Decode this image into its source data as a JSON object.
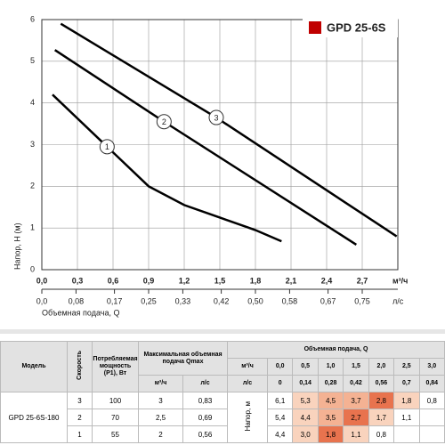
{
  "chart_data": {
    "type": "line",
    "legend_label": "GPD 25-6S",
    "legend_color": "#c00000",
    "xlabel": "Объемная подача, Q",
    "ylabel": "Напор, Н (м)",
    "x_unit": "м³/ч",
    "x2_unit": "л/с",
    "xlim": [
      0,
      3
    ],
    "ylim": [
      0,
      6
    ],
    "x2lim": [
      0,
      0.8333
    ],
    "xticks": [
      {
        "value": 0,
        "label": "0,0"
      },
      {
        "value": 0.3,
        "label": "0,3"
      },
      {
        "value": 0.6,
        "label": "0,6"
      },
      {
        "value": 0.9,
        "label": "0,9"
      },
      {
        "value": 1.2,
        "label": "1,2"
      },
      {
        "value": 1.5,
        "label": "1,5"
      },
      {
        "value": 1.8,
        "label": "1,8"
      },
      {
        "value": 2.1,
        "label": "2,1"
      },
      {
        "value": 2.4,
        "label": "2,4"
      },
      {
        "value": 2.7,
        "label": "2,7"
      }
    ],
    "x2ticks": [
      {
        "value": 0,
        "label": "0,0"
      },
      {
        "value": 0.08,
        "label": "0,08"
      },
      {
        "value": 0.17,
        "label": "0,17"
      },
      {
        "value": 0.25,
        "label": "0,25"
      },
      {
        "value": 0.33,
        "label": "0,33"
      },
      {
        "value": 0.42,
        "label": "0,42"
      },
      {
        "value": 0.5,
        "label": "0,50"
      },
      {
        "value": 0.58,
        "label": "0,58"
      },
      {
        "value": 0.67,
        "label": "0,67"
      },
      {
        "value": 0.75,
        "label": "0,75"
      }
    ],
    "yticks": [
      0,
      1,
      2,
      3,
      4,
      5,
      6
    ],
    "grid": true,
    "series": [
      {
        "name": "1",
        "color": "#000000",
        "x": [
          0.09,
          0.55,
          0.9,
          1.2,
          1.5,
          1.8,
          2.02
        ],
        "values": [
          4.2,
          2.95,
          2.0,
          1.55,
          1.25,
          0.95,
          0.68
        ]
      },
      {
        "name": "2",
        "color": "#000000",
        "x": [
          0.11,
          1.03,
          2.65
        ],
        "values": [
          5.27,
          3.55,
          0.6
        ]
      },
      {
        "name": "3",
        "color": "#000000",
        "x": [
          0.16,
          1.47,
          2.99
        ],
        "values": [
          5.9,
          3.65,
          0.8
        ]
      }
    ]
  },
  "table": {
    "col_model": "Модель",
    "col_speed": "Скорость",
    "col_power": "Потребляемая мощность (P1), Вт",
    "col_qmax": "Максимальная объемная подача Qmax",
    "col_q": "Объемная подача, Q",
    "unit_m3h": "м³/ч",
    "unit_ls": "л/с",
    "head_label": "Напор, м",
    "q_m3h": [
      "0,0",
      "0,5",
      "1,0",
      "1,5",
      "2,0",
      "2,5",
      "3,0"
    ],
    "q_ls": [
      "0",
      "0,14",
      "0,28",
      "0,42",
      "0,56",
      "0,7",
      "0,84"
    ],
    "model": "GPD 25-6S-180",
    "rows": [
      {
        "speed": "3",
        "power": "100",
        "qmax_m3h": "3",
        "qmax_ls": "0,83",
        "head": [
          "6,1",
          "5,3",
          "4,5",
          "3,7",
          "2,8",
          "1,8",
          "0,8"
        ]
      },
      {
        "speed": "2",
        "power": "70",
        "qmax_m3h": "2,5",
        "qmax_ls": "0,69",
        "head": [
          "5,4",
          "4,4",
          "3,5",
          "2,7",
          "1,7",
          "1,1"
        ]
      },
      {
        "speed": "1",
        "power": "55",
        "qmax_m3h": "2",
        "qmax_ls": "0,56",
        "head": [
          "4,4",
          "3,0",
          "1,8",
          "1,1",
          "0,8"
        ]
      }
    ]
  }
}
